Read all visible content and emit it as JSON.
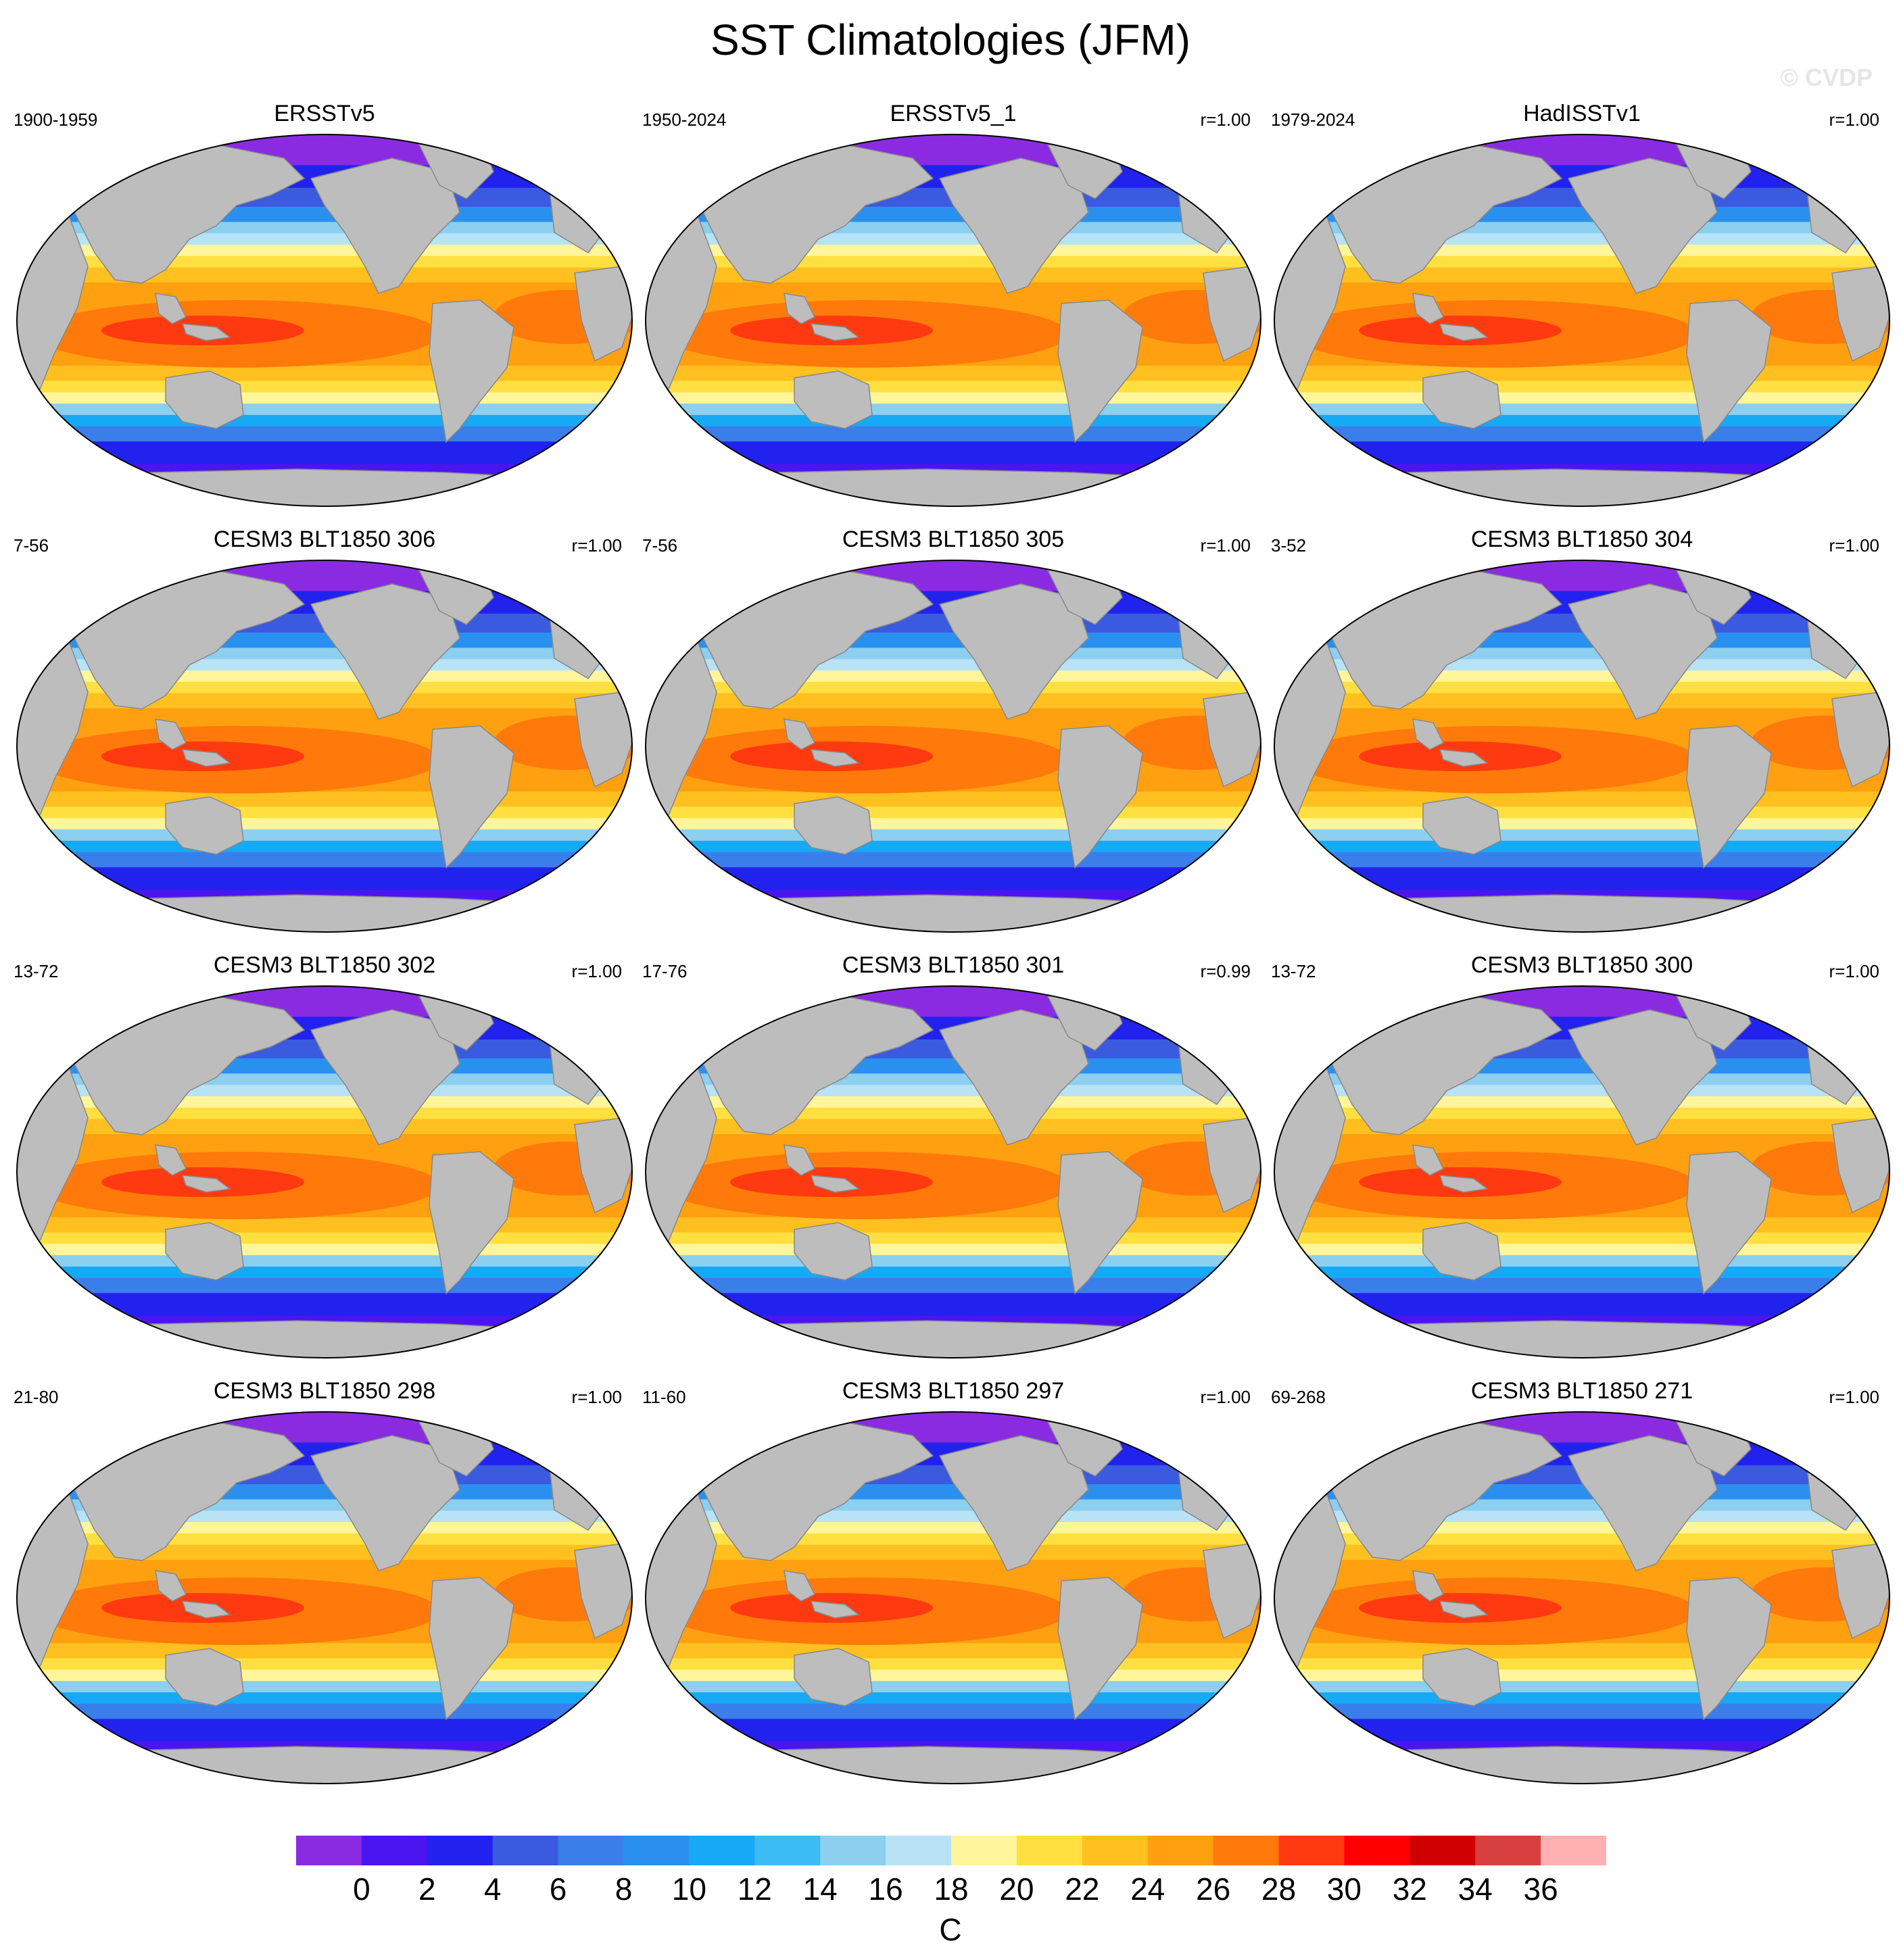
{
  "title": "SST Climatologies (JFM)",
  "watermark": "© CVDP",
  "panels": [
    {
      "name": "ERSSTv5",
      "period": "1900-1959",
      "corr": ""
    },
    {
      "name": "ERSSTv5_1",
      "period": "1950-2024",
      "corr": "r=1.00"
    },
    {
      "name": "HadISSTv1",
      "period": "1979-2024",
      "corr": "r=1.00"
    },
    {
      "name": "CESM3 BLT1850 306",
      "period": "7-56",
      "corr": "r=1.00"
    },
    {
      "name": "CESM3 BLT1850 305",
      "period": "7-56",
      "corr": "r=1.00"
    },
    {
      "name": "CESM3 BLT1850 304",
      "period": "3-52",
      "corr": "r=1.00"
    },
    {
      "name": "CESM3 BLT1850 302",
      "period": "13-72",
      "corr": "r=1.00"
    },
    {
      "name": "CESM3 BLT1850 301",
      "period": "17-76",
      "corr": "r=0.99"
    },
    {
      "name": "CESM3 BLT1850 300",
      "period": "13-72",
      "corr": "r=1.00"
    },
    {
      "name": "CESM3 BLT1850 298",
      "period": "21-80",
      "corr": "r=1.00"
    },
    {
      "name": "CESM3 BLT1850 297",
      "period": "11-60",
      "corr": "r=1.00"
    },
    {
      "name": "CESM3 BLT1850 271",
      "period": "69-268",
      "corr": "r=1.00"
    }
  ],
  "colorbar": {
    "units": "C",
    "labels": [
      "0",
      "2",
      "4",
      "6",
      "8",
      "10",
      "12",
      "14",
      "16",
      "18",
      "20",
      "22",
      "24",
      "26",
      "28",
      "30",
      "32",
      "34",
      "36"
    ],
    "colors": [
      "#8a2be2",
      "#4b15f0",
      "#2222ee",
      "#3a5ae0",
      "#3a7eea",
      "#2a90f0",
      "#16a9f6",
      "#3cbcf4",
      "#8ccfee",
      "#b8e2f6",
      "#fff59a",
      "#ffe040",
      "#ffc020",
      "#ffa010",
      "#ff7a0a",
      "#ff3a10",
      "#ff0000",
      "#d00000",
      "#d84040",
      "#ffb0b0"
    ]
  }
}
